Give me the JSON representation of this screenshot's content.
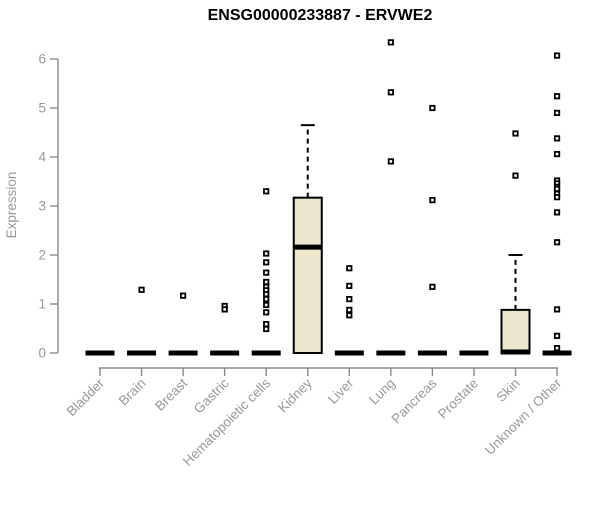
{
  "title": "ENSG00000233887 - ERVWE2",
  "chart_data": {
    "type": "boxplot",
    "title": "ENSG00000233887 - ERVWE2",
    "xlabel": "",
    "ylabel": "Expression",
    "ylim": [
      0,
      6.4
    ],
    "yticks": [
      0,
      1,
      2,
      3,
      4,
      5,
      6
    ],
    "grid": "off",
    "legend": "none",
    "categories": [
      "Bladder",
      "Brain",
      "Breast",
      "Gastric",
      "Hematopoietic cells",
      "Kidney",
      "Liver",
      "Lung",
      "Pancreas",
      "Prostate",
      "Skin",
      "Unknown / Other"
    ],
    "series": [
      {
        "category": "Bladder",
        "whisker_low": 0,
        "q1": 0,
        "median": 0,
        "q3": 0,
        "whisker_high": 0,
        "outliers": []
      },
      {
        "category": "Brain",
        "whisker_low": 0,
        "q1": 0,
        "median": 0,
        "q3": 0,
        "whisker_high": 0,
        "outliers": [
          1.29
        ]
      },
      {
        "category": "Breast",
        "whisker_low": 0,
        "q1": 0,
        "median": 0,
        "q3": 0,
        "whisker_high": 0,
        "outliers": [
          1.17
        ]
      },
      {
        "category": "Gastric",
        "whisker_low": 0,
        "q1": 0,
        "median": 0,
        "q3": 0,
        "whisker_high": 0,
        "outliers": [
          0.96,
          0.89
        ]
      },
      {
        "category": "Hematopoietic cells",
        "whisker_low": 0,
        "q1": 0,
        "median": 0,
        "q3": 0,
        "whisker_high": 0,
        "outliers": [
          3.3,
          2.03,
          1.85,
          1.64,
          1.45,
          1.35,
          1.28,
          1.2,
          1.1,
          0.98,
          0.83,
          0.59,
          0.49
        ]
      },
      {
        "category": "Kidney",
        "whisker_low": 0,
        "q1": 0,
        "median": 2.16,
        "q3": 3.17,
        "whisker_high": 4.65,
        "outliers": []
      },
      {
        "category": "Liver",
        "whisker_low": 0,
        "q1": 0,
        "median": 0,
        "q3": 0,
        "whisker_high": 0,
        "outliers": [
          1.73,
          1.37,
          1.1,
          0.88,
          0.77
        ]
      },
      {
        "category": "Lung",
        "whisker_low": 0,
        "q1": 0,
        "median": 0,
        "q3": 0,
        "whisker_high": 0,
        "outliers": [
          6.34,
          5.32,
          3.91
        ]
      },
      {
        "category": "Pancreas",
        "whisker_low": 0,
        "q1": 0,
        "median": 0,
        "q3": 0,
        "whisker_high": 0,
        "outliers": [
          5.0,
          3.12,
          1.35
        ]
      },
      {
        "category": "Prostate",
        "whisker_low": 0,
        "q1": 0,
        "median": 0,
        "q3": 0,
        "whisker_high": 0,
        "outliers": []
      },
      {
        "category": "Skin",
        "whisker_low": 0,
        "q1": 0,
        "median": 0.02,
        "q3": 0.88,
        "whisker_high": 2.0,
        "outliers": [
          4.48,
          3.62
        ]
      },
      {
        "category": "Unknown / Other",
        "whisker_low": 0,
        "q1": 0,
        "median": 0,
        "q3": 0,
        "whisker_high": 0,
        "outliers": [
          6.07,
          5.24,
          4.9,
          4.38,
          4.06,
          3.52,
          3.46,
          3.39,
          3.35,
          3.25,
          3.18,
          2.87,
          2.26,
          0.89,
          0.35,
          0.1
        ]
      }
    ],
    "colors": {
      "box_fill": "#ece7cd",
      "box_border": "#000000",
      "median": "#000000",
      "whisker": "#000000",
      "outlier_stroke": "#000000",
      "outlier_fill": "#ffffff",
      "axis": "#8a8a8a",
      "tick_label": "#999999",
      "title": "#000000"
    }
  }
}
